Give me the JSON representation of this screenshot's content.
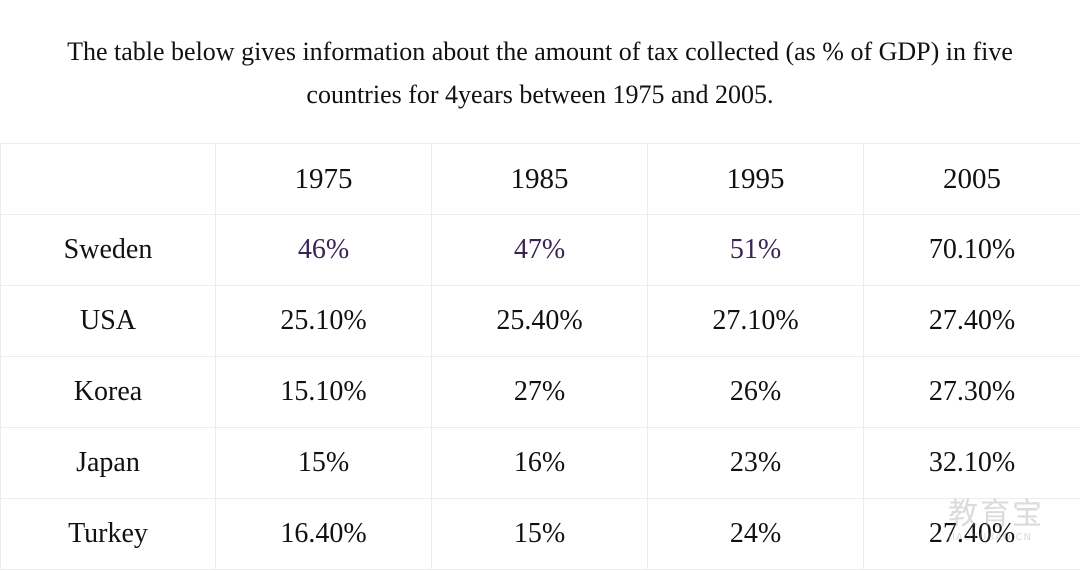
{
  "caption": {
    "line1": "The table below gives information about the amount of tax collected (as % of GDP) in five",
    "line2": "countries for 4years between 1975 and 2005."
  },
  "table": {
    "corner": "",
    "columns": [
      "1975",
      "1985",
      "1995",
      "2005"
    ],
    "rows": [
      {
        "country": "Sweden",
        "values": [
          "46%",
          "47%",
          "51%",
          "70.10%"
        ]
      },
      {
        "country": "USA",
        "values": [
          "25.10%",
          "25.40%",
          "27.10%",
          "27.40%"
        ]
      },
      {
        "country": "Korea",
        "values": [
          "15.10%",
          "27%",
          "26%",
          "27.30%"
        ]
      },
      {
        "country": "Japan",
        "values": [
          "15%",
          "16%",
          "23%",
          "32.10%"
        ]
      },
      {
        "country": "Turkey",
        "values": [
          "16.40%",
          "15%",
          "24%",
          "27.40%"
        ]
      }
    ]
  },
  "chart_data": {
    "type": "table",
    "x": [
      "1975",
      "1985",
      "1995",
      "2005"
    ],
    "series": [
      {
        "name": "Sweden",
        "values": [
          46,
          47,
          51,
          70.1
        ]
      },
      {
        "name": "USA",
        "values": [
          25.1,
          25.4,
          27.1,
          27.4
        ]
      },
      {
        "name": "Korea",
        "values": [
          15.1,
          27,
          26,
          27.3
        ]
      },
      {
        "name": "Japan",
        "values": [
          15,
          16,
          23,
          32.1
        ]
      },
      {
        "name": "Turkey",
        "values": [
          16.4,
          15,
          24,
          27.4
        ]
      }
    ]
  },
  "watermark": {
    "text_cn": "教育宝",
    "text_en": "JIAOYUBAO.CN"
  },
  "colors": {
    "text": "#111111",
    "grid": "#ececec",
    "sweden_early_values": "#3b2353"
  }
}
